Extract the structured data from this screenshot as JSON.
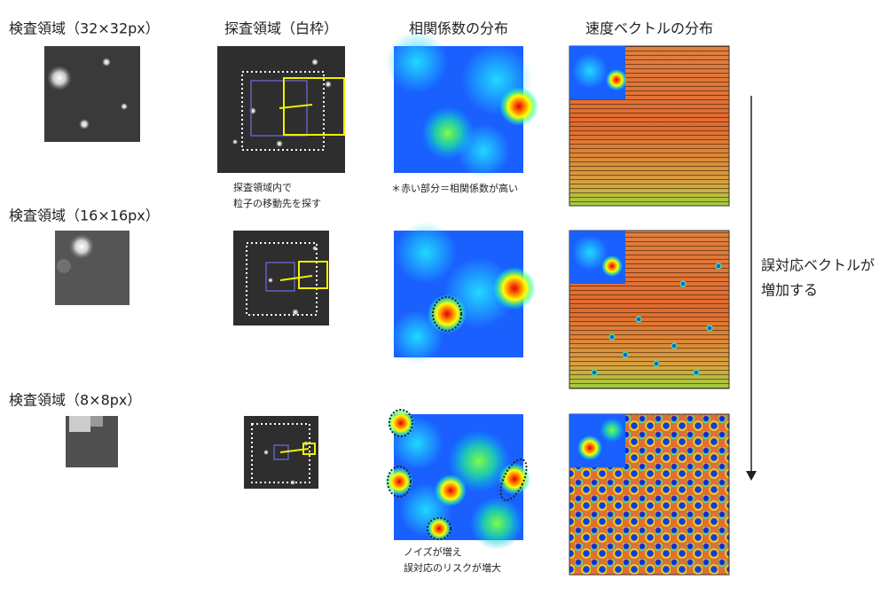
{
  "headers": [
    "探査領域（白枠）",
    "相関係数の分布",
    "速度ベクトルの分布"
  ],
  "rows": [
    {
      "label": "検査領域（32×32px）"
    },
    {
      "label": "検査領域（16×16px）"
    },
    {
      "label": "検査領域（8×8px）"
    }
  ],
  "notes": {
    "search": [
      "探査領域内で",
      "粒子の移動先を探す"
    ],
    "correlation": "＊赤い部分＝相関係数が高い",
    "noise": [
      "ノイズが増え",
      "誤対応のリスクが増大"
    ],
    "arrow": [
      "誤対応ベクトルが",
      "増加する"
    ]
  }
}
